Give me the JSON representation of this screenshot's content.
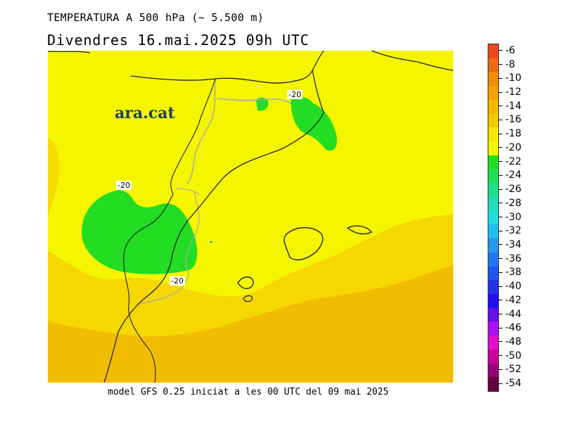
{
  "header": {
    "title_line1": "TEMPERATURA A 500 hPa (~ 5.500 m)",
    "title_line2": "Divendres  16.mai.2025 09h UTC"
  },
  "footer": {
    "model_text": "model GFS 0.25 iniciat a les 00 UTC del 09 mai 2025"
  },
  "map": {
    "logo": "ara.cat",
    "contour_labels": [
      "-20",
      "-20",
      "-20"
    ],
    "field_colors": {
      "cold_below_-20": "#22dd22",
      "band_-20_-18": "#f5f500",
      "band_-18_-16": "#f5d800",
      "band_-16_-14": "#f2bd00",
      "coast": "#222222",
      "border": "#aaaaaa"
    }
  },
  "legend": {
    "labels": [
      "-6",
      "-8",
      "-10",
      "-12",
      "-14",
      "-16",
      "-18",
      "-20",
      "-22",
      "-24",
      "-26",
      "-28",
      "-30",
      "-32",
      "-34",
      "-36",
      "-38",
      "-40",
      "-42",
      "-44",
      "-46",
      "-48",
      "-50",
      "-52",
      "-54"
    ],
    "colors": [
      "#e84a1c",
      "#ee6a12",
      "#f28a0c",
      "#f4a106",
      "#f2b800",
      "#f0cb00",
      "#f6e600",
      "#f5f500",
      "#22dd22",
      "#22dd55",
      "#22dd88",
      "#22ddbb",
      "#22dddd",
      "#22bbee",
      "#2299ee",
      "#2277ee",
      "#2255ee",
      "#2233ee",
      "#2211ee",
      "#6611ee",
      "#aa11ee",
      "#dd11cc",
      "#cc0099",
      "#990077",
      "#660044"
    ]
  }
}
